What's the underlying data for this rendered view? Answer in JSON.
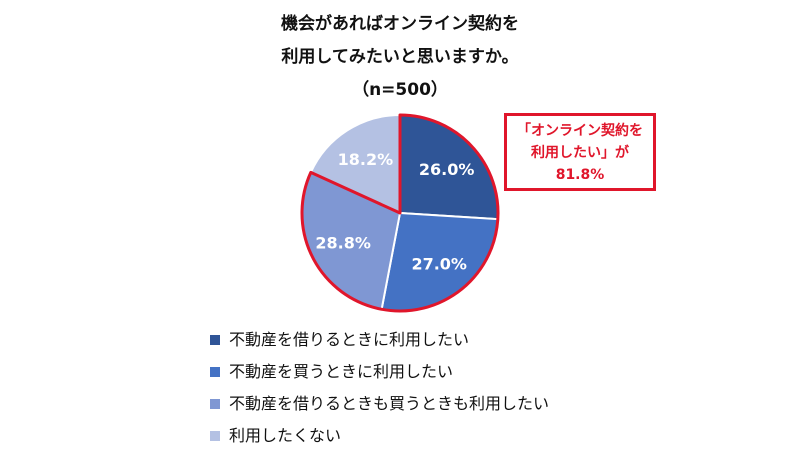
{
  "title": {
    "line1": "機会があればオンライン契約を",
    "line2": "利用してみたいと思いますか。",
    "line3": "（n=500）"
  },
  "callout": {
    "line1": "「オンライン契約を",
    "line2": "利用したい」が",
    "line3": "81.8%"
  },
  "colors": {
    "slice_outline": "#ffffff",
    "highlight": "#e0162b"
  },
  "chart_data": {
    "type": "pie",
    "title": "機会があればオンライン契約を利用してみたいと思いますか。（n=500）",
    "start_angle_deg": 0,
    "direction": "clockwise",
    "highlighted_group": [
      0,
      1,
      2
    ],
    "highlighted_total": "81.8%",
    "slices": [
      {
        "label": "不動産を借りるときに利用したい",
        "value": 26.0,
        "display": "26.0%",
        "color": "#2f5597"
      },
      {
        "label": "不動産を買うときに利用したい",
        "value": 27.0,
        "display": "27.0%",
        "color": "#4472c4"
      },
      {
        "label": "不動産を借りるときも買うときも利用したい",
        "value": 28.8,
        "display": "28.8%",
        "color": "#7f97d3"
      },
      {
        "label": "利用したくない",
        "value": 18.2,
        "display": "18.2%",
        "color": "#b4c1e3"
      }
    ]
  }
}
